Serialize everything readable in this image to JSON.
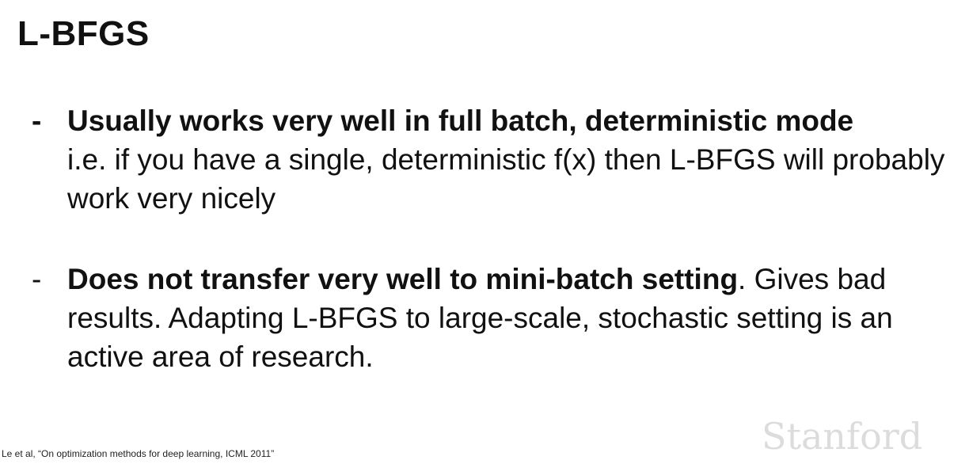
{
  "slide": {
    "title": "L-BFGS",
    "bullets": [
      {
        "marker": "-",
        "bold": "Usually works very well in full batch, deterministic mode",
        "normal": "i.e. if you have a single, deterministic f(x) then L-BFGS will probably work very nicely"
      },
      {
        "marker": "-",
        "bold": "Does not transfer very well to mini-batch setting",
        "normal": ". Gives bad results. Adapting L-BFGS to large-scale, stochastic setting is an active area of research."
      }
    ],
    "citation": "Le et al, “On optimization methods for deep learning, ICML 2011”",
    "logo_text": "Stanford"
  }
}
